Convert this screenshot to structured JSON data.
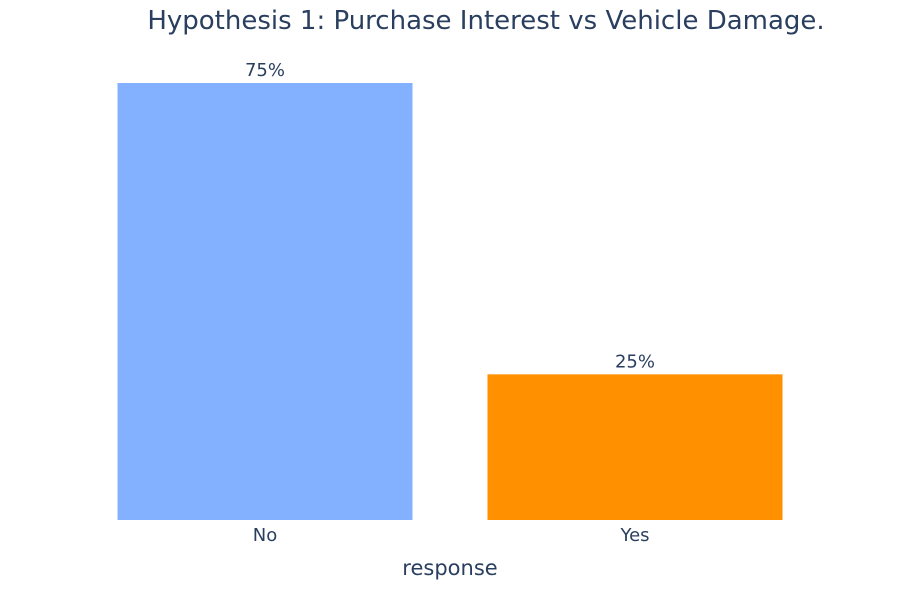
{
  "chart_data": {
    "type": "bar",
    "title": "Hypothesis 1: Purchase Interest vs Vehicle Damage.",
    "xlabel": "response",
    "ylabel": "",
    "categories": [
      "No",
      "Yes"
    ],
    "values": [
      75,
      25
    ],
    "data_labels": [
      "75%",
      "25%"
    ],
    "colors": [
      "#83b0ff",
      "#ff9100"
    ],
    "ylim": [
      0,
      100
    ],
    "grid": false,
    "legend": "none"
  }
}
